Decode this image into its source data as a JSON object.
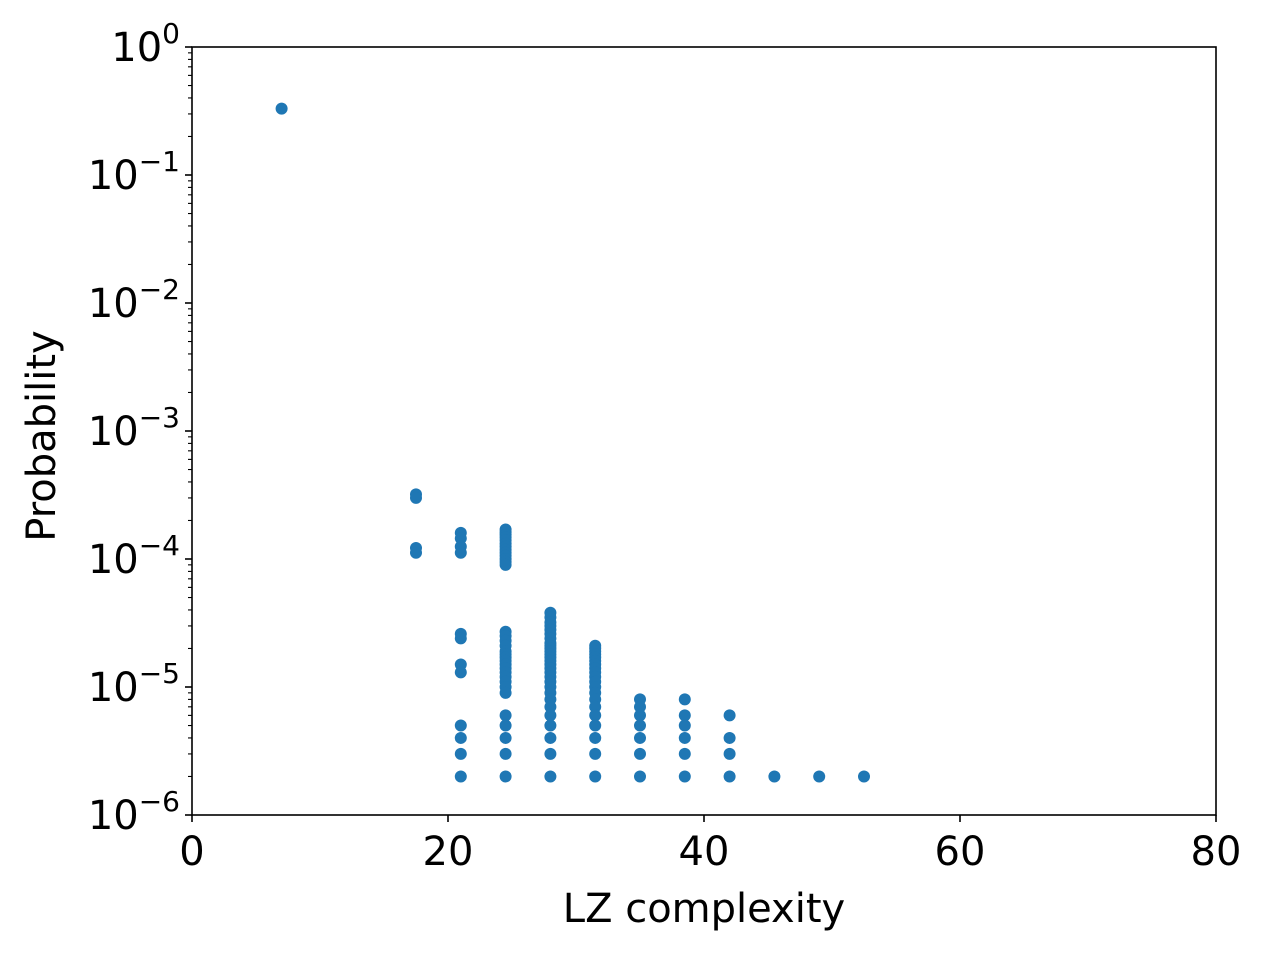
{
  "chart_data": {
    "type": "scatter",
    "title": "",
    "xlabel": "LZ complexity",
    "ylabel": "Probability",
    "xlim": [
      0,
      80
    ],
    "ylim": [
      1e-06,
      1
    ],
    "yscale": "log",
    "grid": false,
    "marker_color": "#1f77b4",
    "x_ticks": [
      {
        "value": 0,
        "label": "0"
      },
      {
        "value": 20,
        "label": "20"
      },
      {
        "value": 40,
        "label": "40"
      },
      {
        "value": 60,
        "label": "60"
      },
      {
        "value": 80,
        "label": "80"
      }
    ],
    "y_ticks": [
      {
        "value": 1,
        "base": "10",
        "exp": "0"
      },
      {
        "value": 0.1,
        "base": "10",
        "exp": "−1"
      },
      {
        "value": 0.01,
        "base": "10",
        "exp": "−2"
      },
      {
        "value": 0.001,
        "base": "10",
        "exp": "−3"
      },
      {
        "value": 0.0001,
        "base": "10",
        "exp": "−4"
      },
      {
        "value": 1e-05,
        "base": "10",
        "exp": "−5"
      },
      {
        "value": 1e-06,
        "base": "10",
        "exp": "−6"
      }
    ],
    "series": [
      {
        "groups": [
          {
            "x": 7.0,
            "y": [
              0.33
            ]
          },
          {
            "x": 17.5,
            "y": [
              0.00032,
              0.0003,
              0.000122,
              0.000112
            ]
          },
          {
            "x": 21.0,
            "y": [
              0.00016,
              0.000145,
              0.000125,
              0.000112,
              2.6e-05,
              2.4e-05,
              1.5e-05,
              1.3e-05,
              5e-06,
              4e-06,
              3e-06,
              2e-06
            ]
          },
          {
            "x": 24.5,
            "y": [
              0.00017,
              0.000162,
              0.000155,
              0.000148,
              0.00014,
              0.000132,
              0.000125,
              0.000118,
              0.000112,
              0.000106,
              0.0001,
              9.5e-05,
              9e-05,
              2.7e-05,
              2.5e-05,
              2.3e-05,
              2.1e-05,
              1.9e-05,
              1.8e-05,
              1.7e-05,
              1.6e-05,
              1.5e-05,
              1.4e-05,
              1.3e-05,
              1.2e-05,
              1.1e-05,
              1e-05,
              9e-06,
              6e-06,
              5e-06,
              4e-06,
              3e-06,
              2e-06
            ]
          },
          {
            "x": 28.0,
            "y": [
              3.8e-05,
              3.5e-05,
              3.2e-05,
              3e-05,
              2.8e-05,
              2.6e-05,
              2.4e-05,
              2.2e-05,
              2.1e-05,
              2e-05,
              1.9e-05,
              1.8e-05,
              1.7e-05,
              1.6e-05,
              1.5e-05,
              1.4e-05,
              1.3e-05,
              1.2e-05,
              1.1e-05,
              1e-05,
              9e-06,
              8e-06,
              7e-06,
              6e-06,
              5e-06,
              4e-06,
              3e-06,
              2e-06
            ]
          },
          {
            "x": 31.5,
            "y": [
              2.1e-05,
              2e-05,
              1.9e-05,
              1.8e-05,
              1.7e-05,
              1.6e-05,
              1.5e-05,
              1.4e-05,
              1.3e-05,
              1.2e-05,
              1.1e-05,
              1e-05,
              9e-06,
              8e-06,
              7e-06,
              6e-06,
              5e-06,
              4e-06,
              3e-06,
              2e-06
            ]
          },
          {
            "x": 35.0,
            "y": [
              8e-06,
              7e-06,
              6e-06,
              5e-06,
              4e-06,
              3e-06,
              2e-06
            ]
          },
          {
            "x": 38.5,
            "y": [
              8e-06,
              6e-06,
              5e-06,
              4e-06,
              3e-06,
              2e-06
            ]
          },
          {
            "x": 42.0,
            "y": [
              6e-06,
              4e-06,
              3e-06,
              2e-06
            ]
          },
          {
            "x": 45.5,
            "y": [
              2e-06
            ]
          },
          {
            "x": 49.0,
            "y": [
              2e-06
            ]
          },
          {
            "x": 52.5,
            "y": [
              2e-06
            ]
          }
        ]
      }
    ]
  }
}
